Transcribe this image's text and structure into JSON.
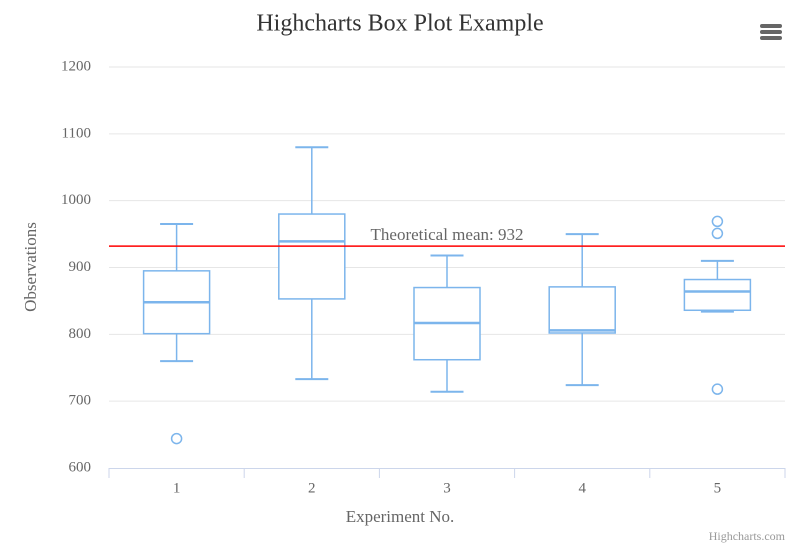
{
  "chart_data": {
    "type": "boxplot",
    "title": "Highcharts Box Plot Example",
    "x_label": "Experiment No.",
    "y_label": "Observations",
    "categories": [
      "1",
      "2",
      "3",
      "4",
      "5"
    ],
    "low": [
      760,
      733,
      714,
      724,
      834
    ],
    "q1": [
      801,
      853,
      762,
      802,
      836
    ],
    "median": [
      848,
      939,
      817,
      806,
      864
    ],
    "q3": [
      895,
      980,
      870,
      871,
      882
    ],
    "high": [
      965,
      1080,
      918,
      950,
      910
    ],
    "outliers": {
      "x": [
        0,
        4,
        4,
        4
      ],
      "values": [
        644,
        718,
        951,
        969
      ]
    },
    "color": "#7cb5ec",
    "plot_line": {
      "value": 932,
      "label": "Theoretical mean: 932",
      "color": "#ff0000"
    },
    "ylim": [
      600,
      1200
    ],
    "yticks": [
      600,
      700,
      800,
      900,
      1000,
      1100,
      1200
    ],
    "grid": true,
    "credits": "Highcharts.com"
  }
}
